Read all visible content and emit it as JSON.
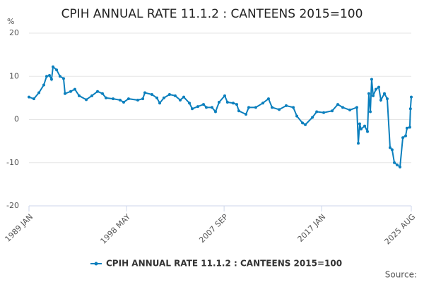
{
  "chart_data": {
    "type": "line",
    "title": "CPIH ANNUAL RATE 11.1.2 : CANTEENS 2015=100",
    "y_label": "%",
    "source": "Source:",
    "x": [
      1989.0,
      1989.47,
      1989.95,
      1990.42,
      1990.69,
      1990.96,
      1991.16,
      1991.3,
      1991.64,
      1991.97,
      1992.31,
      1992.45,
      1992.99,
      1993.39,
      1993.8,
      1994.48,
      1995.02,
      1995.56,
      1996.03,
      1996.37,
      1997.05,
      1997.72,
      1998.06,
      1998.53,
      1999.41,
      1999.89,
      2000.09,
      2000.76,
      2001.24,
      2001.51,
      2001.91,
      2002.45,
      2002.99,
      2003.47,
      2003.81,
      2004.35,
      2004.62,
      2005.16,
      2005.7,
      2005.97,
      2006.51,
      2006.85,
      2007.19,
      2007.73,
      2007.99,
      2008.54,
      2008.88,
      2009.08,
      2009.76,
      2010.03,
      2010.7,
      2011.38,
      2011.92,
      2012.26,
      2012.94,
      2013.61,
      2014.29,
      2014.63,
      2015.17,
      2015.44,
      2016.12,
      2016.53,
      2017.2,
      2018.01,
      2018.55,
      2019.02,
      2019.7,
      2020.37,
      2020.51,
      2020.64,
      2020.78,
      2021.12,
      2021.39,
      2021.52,
      2021.66,
      2021.79,
      2021.93,
      2022.2,
      2022.47,
      2022.67,
      2023.01,
      2023.28,
      2023.55,
      2023.75,
      2023.96,
      2024.23,
      2024.5,
      2024.77,
      2025.04,
      2025.17,
      2025.44,
      2025.5,
      2025.58
    ],
    "series": [
      {
        "name": "CPIH ANNUAL RATE 11.1.2 : CANTEENS 2015=100",
        "color": "#0b7fbd",
        "values": [
          5.2,
          4.8,
          6.2,
          8,
          10,
          10.2,
          9.3,
          12.2,
          11.5,
          10,
          9.5,
          6,
          6.5,
          7,
          5.5,
          4.6,
          5.5,
          6.5,
          6,
          5,
          4.8,
          4.5,
          4.0,
          4.8,
          4.5,
          4.8,
          6.2,
          5.8,
          5,
          3.8,
          5,
          5.8,
          5.5,
          4.5,
          5.2,
          3.8,
          2.5,
          3,
          3.5,
          2.8,
          2.8,
          1.8,
          4,
          5.5,
          4,
          3.8,
          3.5,
          2,
          1.2,
          2.8,
          2.8,
          3.8,
          4.8,
          2.8,
          2.3,
          3.2,
          2.8,
          0.8,
          -0.8,
          -1.2,
          0.5,
          1.8,
          1.6,
          2,
          3.5,
          2.8,
          2.2,
          2.8,
          -5.5,
          -1,
          -2.2,
          -1.5,
          -2.8,
          6,
          1.8,
          9.3,
          5.5,
          7,
          7.5,
          4.5,
          6,
          4.8,
          -6.5,
          -7,
          -10,
          -10.5,
          -11,
          -4.2,
          -3.8,
          -2,
          -1.8,
          2.5,
          5.2
        ]
      }
    ],
    "xlim": [
      1989.0,
      2025.58
    ],
    "xticks": [
      {
        "value": 1989.0,
        "label": "1989 JAN"
      },
      {
        "value": 1998.33,
        "label": "1998 MAY"
      },
      {
        "value": 2007.67,
        "label": "2007 SEP"
      },
      {
        "value": 2017.0,
        "label": "2017 JAN"
      },
      {
        "value": 2025.58,
        "label": "2025 AUG"
      }
    ],
    "ylim": [
      -20,
      20
    ],
    "yticks": [
      -20,
      -10,
      0,
      10,
      20
    ],
    "grid": true,
    "legend": "bottom"
  }
}
